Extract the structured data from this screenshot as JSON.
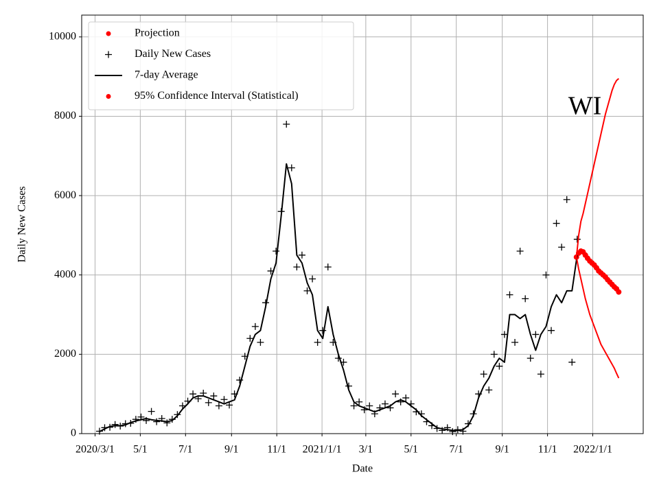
{
  "chart_data": {
    "type": "line",
    "annotation": "WI",
    "x_label": "Date",
    "y_label": "Daily New Cases",
    "grid": true,
    "legend": "upper left",
    "xlim": [
      "2020-02-12",
      "2022-03-10"
    ],
    "ylim": [
      0,
      10550
    ],
    "yticks": [
      0,
      2000,
      4000,
      6000,
      8000,
      10000
    ],
    "xticks": [
      {
        "value": "2020-03-01",
        "label": "2020/3/1"
      },
      {
        "value": "2020-05-01",
        "label": "5/1"
      },
      {
        "value": "2020-07-01",
        "label": "7/1"
      },
      {
        "value": "2020-09-01",
        "label": "9/1"
      },
      {
        "value": "2020-11-01",
        "label": "11/1"
      },
      {
        "value": "2021-01-01",
        "label": "2021/1/1"
      },
      {
        "value": "2021-03-01",
        "label": "3/1"
      },
      {
        "value": "2021-05-01",
        "label": "5/1"
      },
      {
        "value": "2021-07-01",
        "label": "7/1"
      },
      {
        "value": "2021-09-01",
        "label": "9/1"
      },
      {
        "value": "2021-11-01",
        "label": "11/1"
      },
      {
        "value": "2022-01-01",
        "label": "2022/1/1"
      }
    ],
    "x": [
      "2020-03-07",
      "2020-03-14",
      "2020-03-21",
      "2020-03-28",
      "2020-04-04",
      "2020-04-11",
      "2020-04-18",
      "2020-04-25",
      "2020-05-02",
      "2020-05-09",
      "2020-05-16",
      "2020-05-23",
      "2020-05-30",
      "2020-06-06",
      "2020-06-13",
      "2020-06-20",
      "2020-06-27",
      "2020-07-04",
      "2020-07-11",
      "2020-07-18",
      "2020-07-25",
      "2020-08-01",
      "2020-08-08",
      "2020-08-15",
      "2020-08-22",
      "2020-08-29",
      "2020-09-05",
      "2020-09-12",
      "2020-09-19",
      "2020-09-26",
      "2020-10-03",
      "2020-10-10",
      "2020-10-17",
      "2020-10-24",
      "2020-10-31",
      "2020-11-07",
      "2020-11-14",
      "2020-11-21",
      "2020-11-28",
      "2020-12-05",
      "2020-12-12",
      "2020-12-19",
      "2020-12-26",
      "2021-01-02",
      "2021-01-09",
      "2021-01-16",
      "2021-01-23",
      "2021-01-30",
      "2021-02-06",
      "2021-02-13",
      "2021-02-20",
      "2021-02-27",
      "2021-03-06",
      "2021-03-13",
      "2021-03-20",
      "2021-03-27",
      "2021-04-03",
      "2021-04-10",
      "2021-04-17",
      "2021-04-24",
      "2021-05-01",
      "2021-05-08",
      "2021-05-15",
      "2021-05-22",
      "2021-05-29",
      "2021-06-05",
      "2021-06-12",
      "2021-06-19",
      "2021-06-26",
      "2021-07-03",
      "2021-07-10",
      "2021-07-17",
      "2021-07-24",
      "2021-07-31",
      "2021-08-07",
      "2021-08-14",
      "2021-08-21",
      "2021-08-28",
      "2021-09-04",
      "2021-09-11",
      "2021-09-18",
      "2021-09-25",
      "2021-10-02",
      "2021-10-09",
      "2021-10-16",
      "2021-10-23",
      "2021-10-30",
      "2021-11-06",
      "2021-11-13",
      "2021-11-20",
      "2021-11-27",
      "2021-12-04",
      "2021-12-11"
    ],
    "series": [
      {
        "name": "Projection",
        "color": "#ff0000",
        "marker": "dot",
        "x": [
          "2021-12-10",
          "2021-12-13",
          "2021-12-16",
          "2021-12-19",
          "2021-12-22",
          "2021-12-25",
          "2021-12-28",
          "2021-12-31",
          "2022-01-03",
          "2022-01-06",
          "2022-01-09",
          "2022-01-12",
          "2022-01-15",
          "2022-01-18",
          "2022-01-21",
          "2022-01-24",
          "2022-01-27",
          "2022-01-30",
          "2022-02-02",
          "2022-02-05"
        ],
        "values": [
          4450,
          4550,
          4600,
          4580,
          4500,
          4420,
          4350,
          4300,
          4250,
          4180,
          4100,
          4050,
          4000,
          3950,
          3880,
          3820,
          3760,
          3700,
          3650,
          3570
        ]
      },
      {
        "name": "Daily New Cases",
        "color": "#000000",
        "marker": "plus",
        "values": [
          60,
          150,
          160,
          230,
          190,
          250,
          260,
          360,
          420,
          330,
          560,
          300,
          380,
          270,
          360,
          480,
          700,
          820,
          1000,
          880,
          1020,
          780,
          950,
          700,
          860,
          720,
          1000,
          1350,
          1950,
          2400,
          2700,
          2300,
          3300,
          4100,
          4600,
          5600,
          7800,
          6700,
          4200,
          4500,
          3600,
          3900,
          2300,
          2600,
          4200,
          2300,
          1900,
          1800,
          1200,
          700,
          800,
          600,
          700,
          500,
          650,
          750,
          650,
          1000,
          800,
          900,
          750,
          550,
          500,
          300,
          200,
          130,
          80,
          150,
          50,
          100,
          60,
          250,
          500,
          1000,
          1500,
          1100,
          2000,
          1700,
          2500,
          3500,
          2300,
          4600,
          3400,
          1900,
          2500,
          1500,
          4000,
          2600,
          5300,
          4700,
          5900,
          1800,
          4900
        ]
      },
      {
        "name": "7-day Average",
        "color": "#000000",
        "marker": "line",
        "values": [
          50,
          120,
          180,
          200,
          200,
          220,
          280,
          320,
          350,
          380,
          350,
          330,
          320,
          300,
          330,
          450,
          620,
          750,
          900,
          950,
          950,
          900,
          850,
          800,
          750,
          800,
          850,
          1200,
          1700,
          2200,
          2500,
          2600,
          3200,
          3900,
          4300,
          5500,
          6800,
          6300,
          4500,
          4300,
          3800,
          3500,
          2600,
          2400,
          3200,
          2500,
          2000,
          1600,
          1100,
          800,
          700,
          650,
          600,
          550,
          600,
          650,
          700,
          800,
          850,
          800,
          700,
          600,
          450,
          350,
          250,
          150,
          120,
          100,
          80,
          80,
          100,
          200,
          450,
          900,
          1200,
          1400,
          1700,
          1900,
          1800,
          3000,
          3000,
          2900,
          3000,
          2500,
          2100,
          2500,
          2700,
          3200,
          3500,
          3300,
          3600,
          3600,
          4500
        ]
      },
      {
        "name": "95% Confidence Interval (Statistical)",
        "color": "#ff0000",
        "marker": "dot",
        "x": [
          "2021-12-10",
          "2021-12-13",
          "2021-12-16",
          "2021-12-19",
          "2021-12-22",
          "2021-12-25",
          "2021-12-28",
          "2021-12-31",
          "2022-01-03",
          "2022-01-06",
          "2022-01-09",
          "2022-01-12",
          "2022-01-15",
          "2022-01-18",
          "2022-01-21",
          "2022-01-24",
          "2022-01-27",
          "2022-01-30",
          "2022-02-02",
          "2022-02-05"
        ],
        "upper": [
          4450,
          5000,
          5350,
          5550,
          5800,
          6050,
          6300,
          6550,
          6800,
          7050,
          7300,
          7550,
          7800,
          8050,
          8250,
          8450,
          8650,
          8800,
          8900,
          8950
        ],
        "lower": [
          4450,
          4150,
          3900,
          3650,
          3400,
          3200,
          3000,
          2850,
          2700,
          2550,
          2400,
          2250,
          2150,
          2050,
          1950,
          1850,
          1750,
          1650,
          1520,
          1400
        ]
      }
    ]
  }
}
